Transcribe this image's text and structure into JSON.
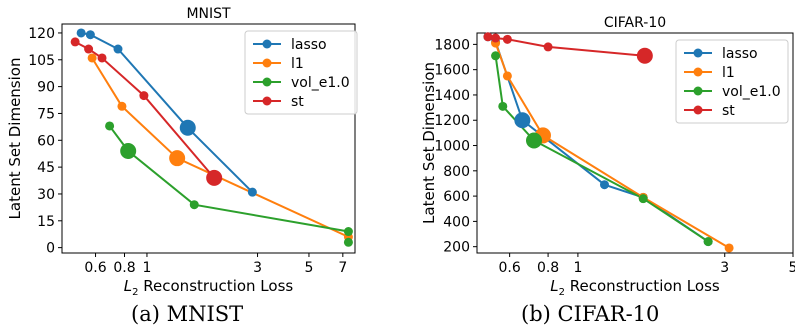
{
  "figure": {
    "captions": [
      "(a) MNIST",
      "(b) CIFAR-10"
    ],
    "colors": {
      "lasso": "#1f77b4",
      "l1": "#ff7f0e",
      "vol_e1.0": "#2ca02c",
      "st": "#d62728"
    }
  },
  "chart_data": [
    {
      "type": "line",
      "title": "MNIST",
      "xlabel": "L2 Reconstruction Loss",
      "ylabel": "Latent Set Dimension",
      "xscale": "log",
      "xlim": [
        0.43,
        7.9
      ],
      "ylim": [
        -3,
        125
      ],
      "xticks": [
        0.6,
        0.8,
        1,
        3,
        5,
        7
      ],
      "xticklabels": [
        "0.6",
        "0.8",
        "1",
        "3",
        "5",
        "7"
      ],
      "yticks": [
        0,
        15,
        30,
        45,
        60,
        75,
        90,
        105,
        120
      ],
      "grid": false,
      "legend_position": "top-right",
      "series": [
        {
          "name": "lasso",
          "color": "#1f77b4",
          "x": [
            0.52,
            0.57,
            0.75,
            1.5,
            2.85
          ],
          "y": [
            120,
            119,
            111,
            67,
            31
          ],
          "highlight_index": 3
        },
        {
          "name": "l1",
          "color": "#ff7f0e",
          "x": [
            0.58,
            0.78,
            1.35,
            7.4
          ],
          "y": [
            106,
            79,
            50,
            6
          ],
          "highlight_index": 2
        },
        {
          "name": "vol_e1.0",
          "color": "#2ca02c",
          "x": [
            0.69,
            0.83,
            1.6,
            7.4,
            7.4
          ],
          "y": [
            68,
            54,
            24,
            9,
            3
          ],
          "highlight_index": 1
        },
        {
          "name": "st",
          "color": "#d62728",
          "x": [
            0.49,
            0.56,
            0.64,
            0.97,
            1.95
          ],
          "y": [
            115,
            111,
            106,
            85,
            39
          ],
          "highlight_index": 4
        }
      ]
    },
    {
      "type": "line",
      "title": "CIFAR-10",
      "xlabel": "L2 Reconstruction Loss",
      "ylabel": "Latent Set Dimension",
      "xscale": "log",
      "xlim": [
        0.47,
        5.0
      ],
      "ylim": [
        150,
        1890
      ],
      "xticks": [
        0.6,
        0.8,
        1,
        3,
        5
      ],
      "xticklabels": [
        "0.6",
        "0.8",
        "1",
        "3",
        "5"
      ],
      "yticks": [
        200,
        400,
        600,
        800,
        1000,
        1200,
        1400,
        1600,
        1800
      ],
      "grid": false,
      "legend_position": "top-right",
      "series": [
        {
          "name": "lasso",
          "color": "#1f77b4",
          "x": [
            0.51,
            0.54,
            0.66,
            1.22,
            1.63,
            2.65
          ],
          "y": [
            1860,
            1820,
            1200,
            690,
            590,
            240
          ],
          "highlight_index": 2
        },
        {
          "name": "l1",
          "color": "#ff7f0e",
          "x": [
            0.54,
            0.59,
            0.77,
            1.63,
            3.1
          ],
          "y": [
            1810,
            1550,
            1080,
            590,
            190
          ],
          "highlight_index": 2
        },
        {
          "name": "vol_e1.0",
          "color": "#2ca02c",
          "x": [
            0.54,
            0.57,
            0.72,
            1.63,
            2.65
          ],
          "y": [
            1710,
            1310,
            1040,
            580,
            240
          ],
          "highlight_index": 2
        },
        {
          "name": "st",
          "color": "#d62728",
          "x": [
            0.51,
            0.54,
            0.59,
            0.8,
            1.65
          ],
          "y": [
            1860,
            1850,
            1840,
            1780,
            1710
          ],
          "highlight_index": 4
        }
      ]
    }
  ]
}
